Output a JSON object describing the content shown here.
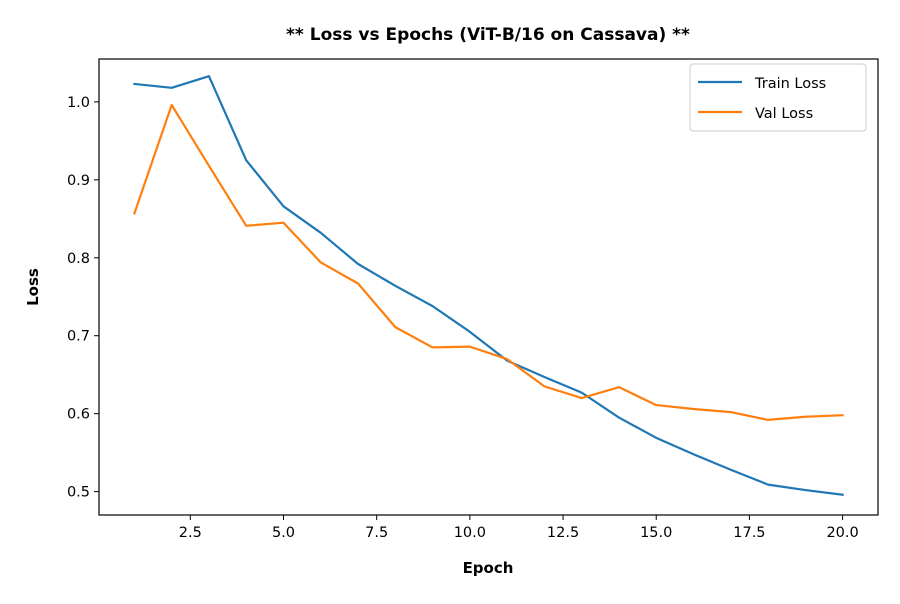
{
  "chart_data": {
    "type": "line",
    "title": "** Loss vs Epochs (ViT-B/16 on Cassava) **",
    "xlabel": "Epoch",
    "ylabel": "Loss",
    "x": [
      1,
      2,
      3,
      4,
      5,
      6,
      7,
      8,
      9,
      10,
      11,
      12,
      13,
      14,
      15,
      16,
      17,
      18,
      19,
      20
    ],
    "xlim": [
      0.05,
      20.95
    ],
    "ylim": [
      0.47,
      1.055
    ],
    "xticks": [
      2.5,
      5.0,
      7.5,
      10.0,
      12.5,
      15.0,
      17.5,
      20.0
    ],
    "xtick_labels": [
      "2.5",
      "5.0",
      "7.5",
      "10.0",
      "12.5",
      "15.0",
      "17.5",
      "20.0"
    ],
    "yticks": [
      0.5,
      0.6,
      0.7,
      0.8,
      0.9,
      1.0
    ],
    "ytick_labels": [
      "0.5",
      "0.6",
      "0.7",
      "0.8",
      "0.9",
      "1.0"
    ],
    "grid": false,
    "legend_position": "top-right",
    "series": [
      {
        "name": "Train Loss",
        "color": "#1f77b4",
        "values": [
          1.023,
          1.018,
          1.033,
          0.925,
          0.866,
          0.832,
          0.792,
          0.764,
          0.738,
          0.705,
          0.668,
          0.647,
          0.627,
          0.595,
          0.569,
          0.548,
          0.528,
          0.509,
          0.502,
          0.496
        ]
      },
      {
        "name": "Val Loss",
        "color": "#ff7f0e",
        "values": [
          0.857,
          0.996,
          0.918,
          0.841,
          0.845,
          0.794,
          0.767,
          0.711,
          0.685,
          0.686,
          0.67,
          0.635,
          0.62,
          0.634,
          0.611,
          0.606,
          0.602,
          0.592,
          0.596,
          0.598
        ]
      }
    ]
  }
}
